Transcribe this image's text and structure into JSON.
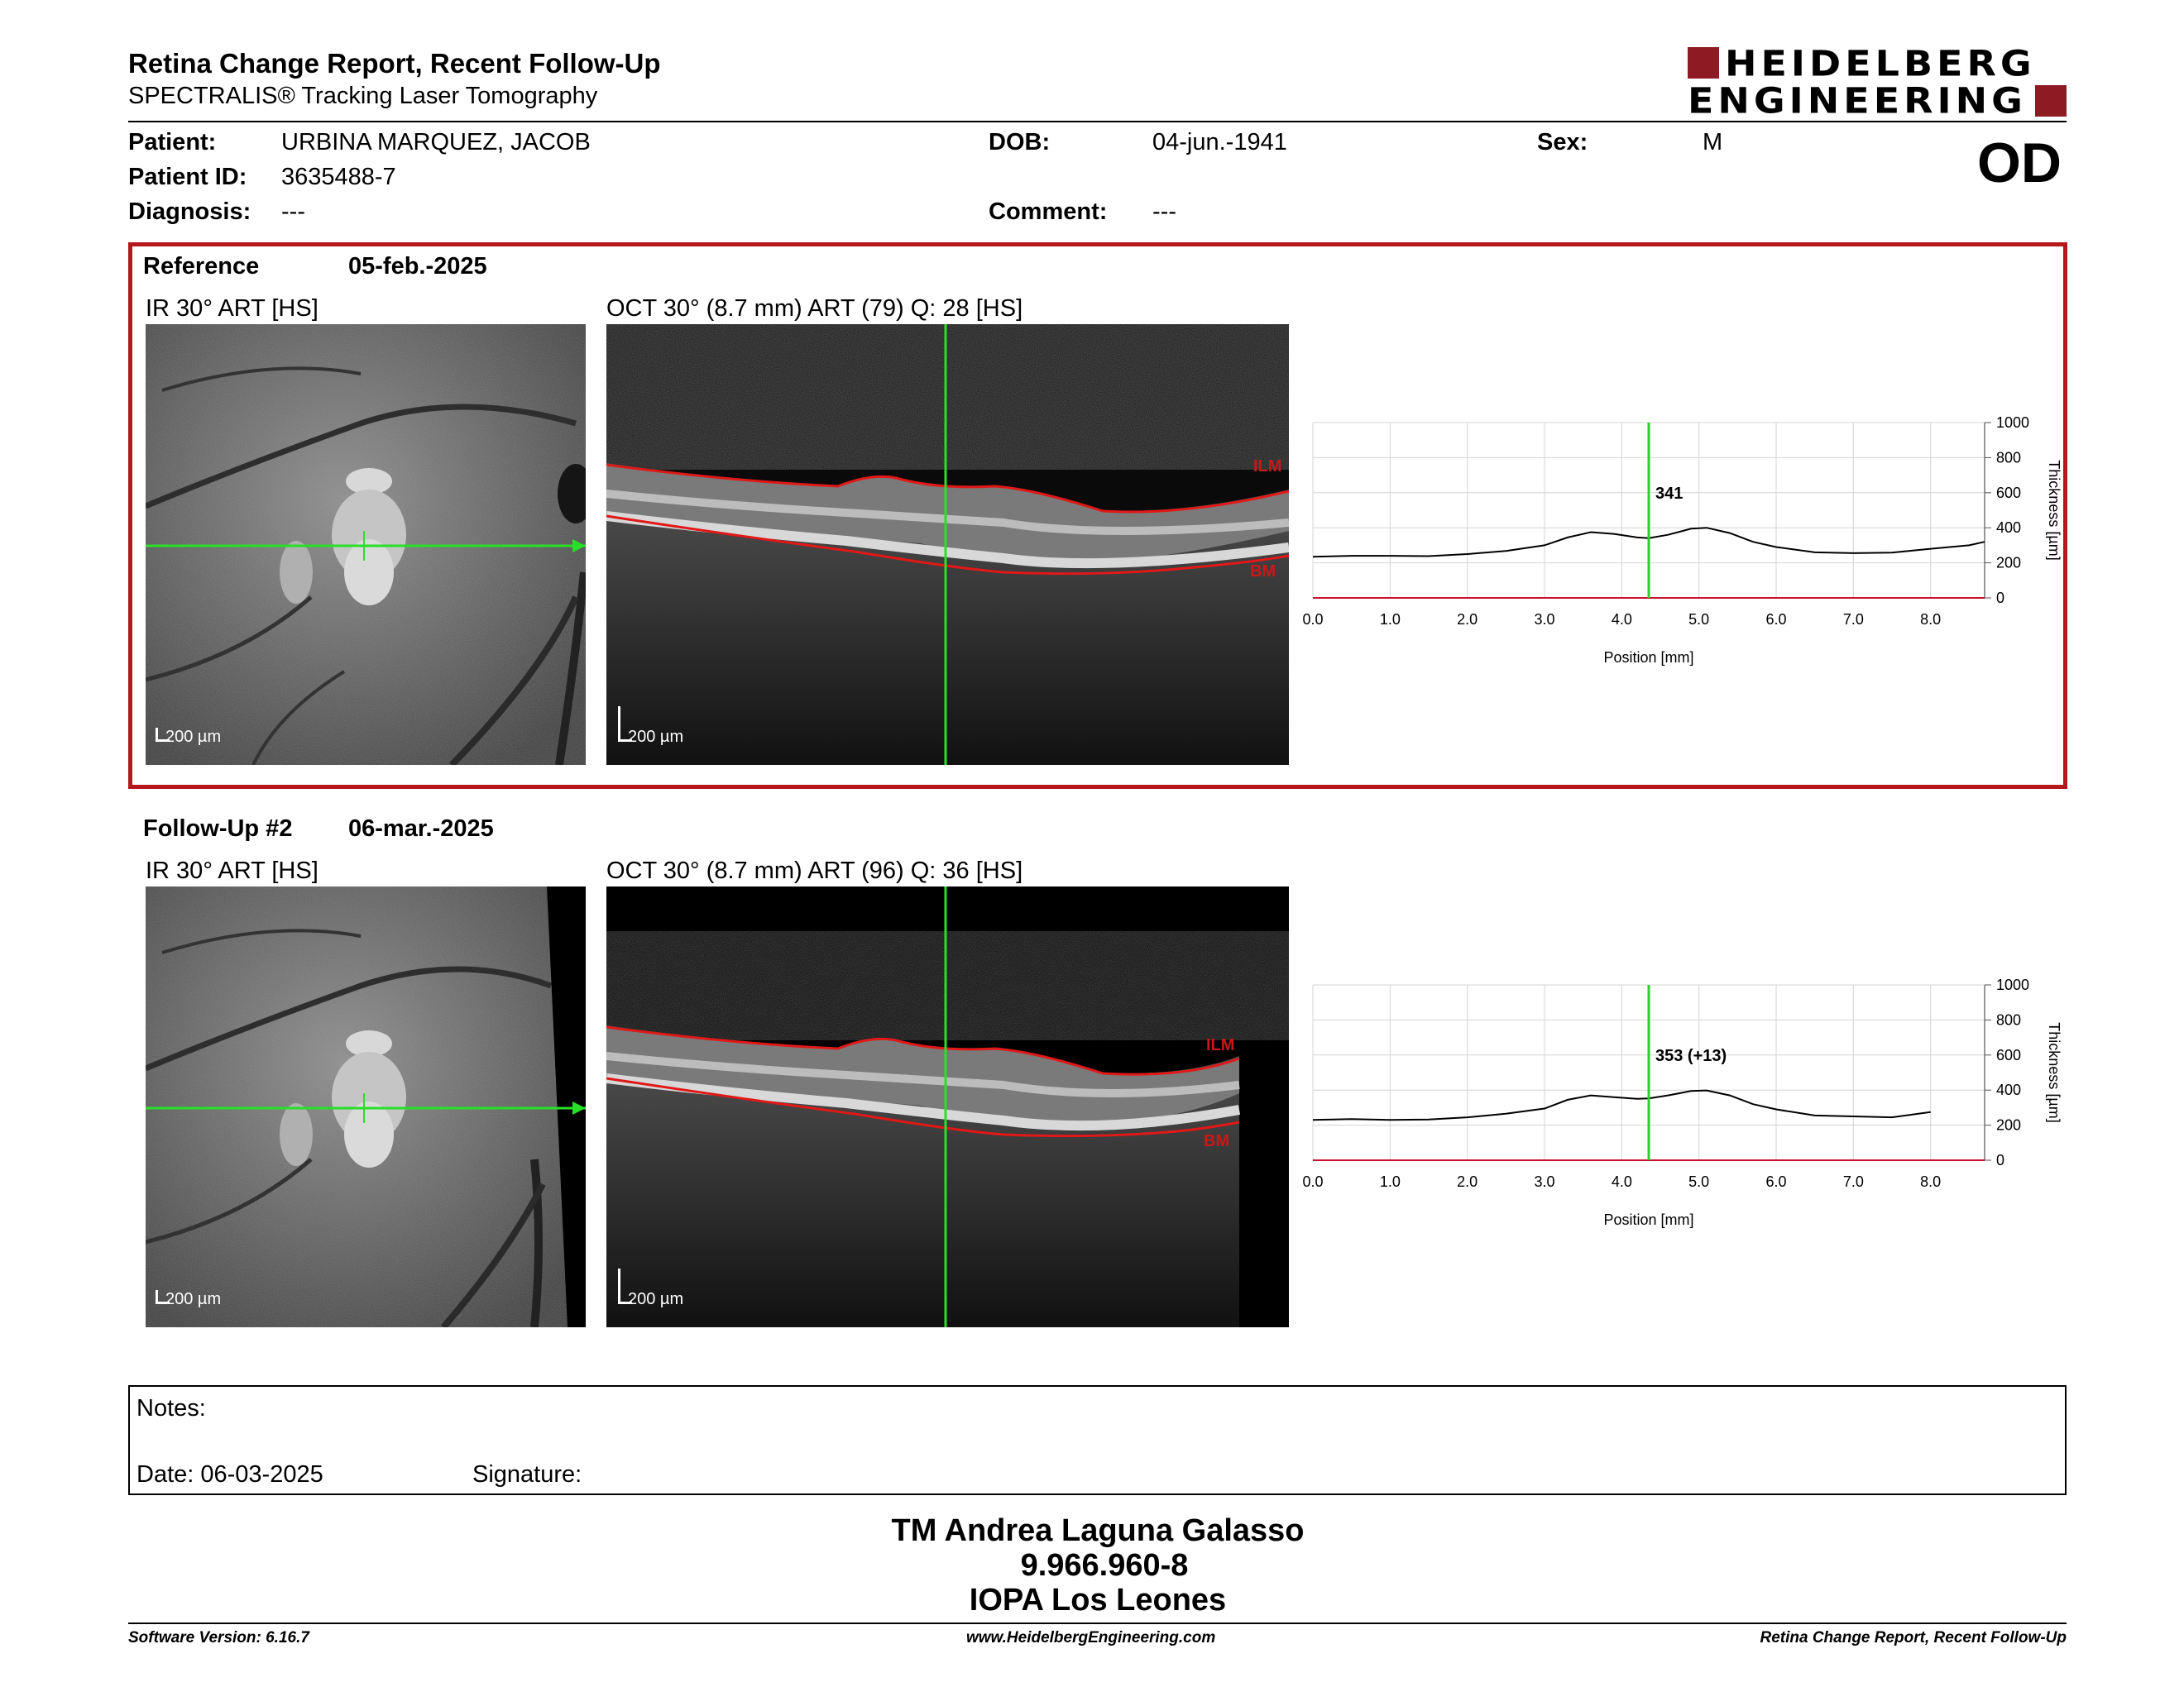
{
  "header": {
    "title": "Retina Change Report, Recent Follow-Up",
    "subtitle": "SPECTRALIS® Tracking Laser Tomography",
    "logo": "HEIDELBERG ENGINEERING",
    "brand_color": "#8e1a24"
  },
  "patient": {
    "name_label": "Patient:",
    "name": "URBINA MARQUEZ, JACOB",
    "id_label": "Patient ID:",
    "id": "3635488-7",
    "diagnosis_label": "Diagnosis:",
    "diagnosis": "---",
    "dob_label": "DOB:",
    "dob": "04-jun.-1941",
    "comment_label": "Comment:",
    "comment": "---",
    "sex_label": "Sex:",
    "sex": "M",
    "eye": "OD"
  },
  "reference": {
    "label": "Reference",
    "date": "05-feb.-2025",
    "ir_label": "IR 30° ART [HS]",
    "oct_label": "OCT 30° (8.7 mm) ART (79) Q: 28 [HS]",
    "scale_ir": "200 µm",
    "scale_oct": "200 µm",
    "ilm": "ILM",
    "bm": "BM"
  },
  "followup": {
    "label": "Follow-Up #2",
    "date": "06-mar.-2025",
    "ir_label": "IR 30° ART [HS]",
    "oct_label": "OCT 30° (8.7 mm) ART (96) Q: 36 [HS]",
    "scale_ir": "200 µm",
    "scale_oct": "200 µm",
    "ilm": "ILM",
    "bm": "BM"
  },
  "chart_data": [
    {
      "type": "line",
      "xlabel": "Position [mm]",
      "ylabel": "Thickness [µm]",
      "xlim": [
        0,
        8.7
      ],
      "ylim": [
        0,
        1000
      ],
      "x_ticks": [
        "0.0",
        "1.0",
        "2.0",
        "3.0",
        "4.0",
        "5.0",
        "6.0",
        "7.0",
        "8.0"
      ],
      "y_ticks": [
        "0",
        "200",
        "400",
        "600",
        "800",
        "1000"
      ],
      "cursor_x": 4.35,
      "cursor_label": "341",
      "x": [
        0,
        0.5,
        1,
        1.5,
        2,
        2.5,
        3,
        3.3,
        3.6,
        3.9,
        4.2,
        4.35,
        4.6,
        4.9,
        5.1,
        5.4,
        5.7,
        6,
        6.5,
        7,
        7.5,
        8,
        8.5,
        8.7
      ],
      "y": [
        235,
        240,
        240,
        238,
        250,
        268,
        300,
        345,
        375,
        365,
        345,
        341,
        360,
        395,
        400,
        370,
        320,
        290,
        260,
        255,
        258,
        280,
        300,
        320
      ]
    },
    {
      "type": "line",
      "xlabel": "Position [mm]",
      "ylabel": "Thickness [µm]",
      "xlim": [
        0,
        8.7
      ],
      "ylim": [
        0,
        1000
      ],
      "x_ticks": [
        "0.0",
        "1.0",
        "2.0",
        "3.0",
        "4.0",
        "5.0",
        "6.0",
        "7.0",
        "8.0"
      ],
      "y_ticks": [
        "0",
        "200",
        "400",
        "600",
        "800",
        "1000"
      ],
      "cursor_x": 4.35,
      "cursor_label": "353 (+13)",
      "x": [
        0,
        0.5,
        1,
        1.5,
        2,
        2.5,
        3,
        3.3,
        3.6,
        3.9,
        4.2,
        4.35,
        4.6,
        4.9,
        5.1,
        5.4,
        5.7,
        6,
        6.5,
        7,
        7.5,
        8
      ],
      "y": [
        230,
        235,
        230,
        232,
        245,
        265,
        295,
        345,
        370,
        360,
        350,
        353,
        370,
        395,
        398,
        370,
        320,
        290,
        255,
        250,
        245,
        275
      ]
    }
  ],
  "notes": {
    "notes_label": "Notes:",
    "date_label": "Date: 06-03-2025",
    "signature_label": "Signature:"
  },
  "signer": {
    "name": "TM Andrea Laguna Galasso",
    "id": "9.966.960-8",
    "org": "IOPA Los Leones"
  },
  "footer": {
    "version": "Software Version: 6.16.7",
    "website": "www.HeidelbergEngineering.com",
    "report": "Retina Change Report, Recent Follow-Up"
  }
}
